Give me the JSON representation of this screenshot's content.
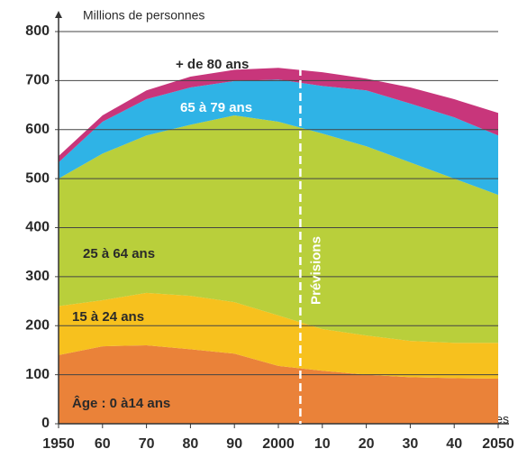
{
  "chart_data": {
    "type": "stacked_area",
    "y_label": "Millions de personnes",
    "x_label": "Années",
    "annotation": {
      "text": "Prévisions",
      "x": 2005
    },
    "x": [
      1950,
      1960,
      1970,
      1980,
      1990,
      2000,
      2010,
      2020,
      2030,
      2040,
      2050
    ],
    "series": [
      {
        "name": "Âge : 0 à14 ans",
        "color": "#ea8239",
        "values": [
          140,
          158,
          160,
          152,
          143,
          118,
          108,
          100,
          95,
          93,
          92
        ]
      },
      {
        "name": "15 à 24 ans",
        "color": "#f7c11e",
        "values": [
          100,
          94,
          107,
          109,
          105,
          103,
          85,
          80,
          74,
          72,
          73
        ]
      },
      {
        "name": "25 à 64 ans",
        "color": "#b9cf3b",
        "values": [
          260,
          299,
          321,
          349,
          381,
          395,
          399,
          386,
          364,
          335,
          302
        ]
      },
      {
        "name": "65 à 79 ans",
        "color": "#2fb3e6",
        "values": [
          33,
          65,
          74,
          76,
          70,
          86,
          97,
          114,
          120,
          125,
          121
        ]
      },
      {
        "name": "+ de 80 ans",
        "color": "#c8367b",
        "values": [
          13,
          13,
          18,
          22,
          23,
          24,
          28,
          24,
          33,
          37,
          46
        ]
      }
    ],
    "xlim": [
      1950,
      2050
    ],
    "xticks": [
      1950,
      {
        "value": 1960,
        "label": "60"
      },
      {
        "value": 1970,
        "label": "70"
      },
      {
        "value": 1980,
        "label": "80"
      },
      {
        "value": 1990,
        "label": "90"
      },
      2000,
      {
        "value": 2010,
        "label": "10"
      },
      {
        "value": 2020,
        "label": "20"
      },
      {
        "value": 2030,
        "label": "30"
      },
      {
        "value": 2040,
        "label": "40"
      },
      2050
    ],
    "ylim": [
      0,
      800
    ],
    "yticks": [
      0,
      100,
      200,
      300,
      400,
      500,
      600,
      700,
      800
    ],
    "grid": true
  }
}
